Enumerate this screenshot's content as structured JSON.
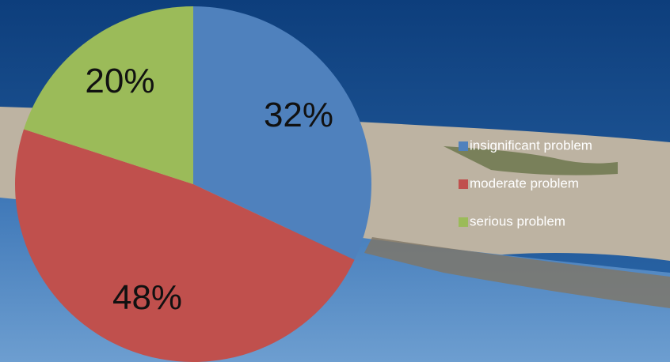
{
  "chart_data": {
    "type": "pie",
    "categories": [
      "insignificant problem",
      "moderate problem",
      "serious problem"
    ],
    "values": [
      32,
      48,
      20
    ],
    "value_labels": [
      "32%",
      "48%",
      "20%"
    ],
    "colors": [
      "#4f81bd",
      "#c0504d",
      "#9bbb59"
    ],
    "legend": "right"
  }
}
